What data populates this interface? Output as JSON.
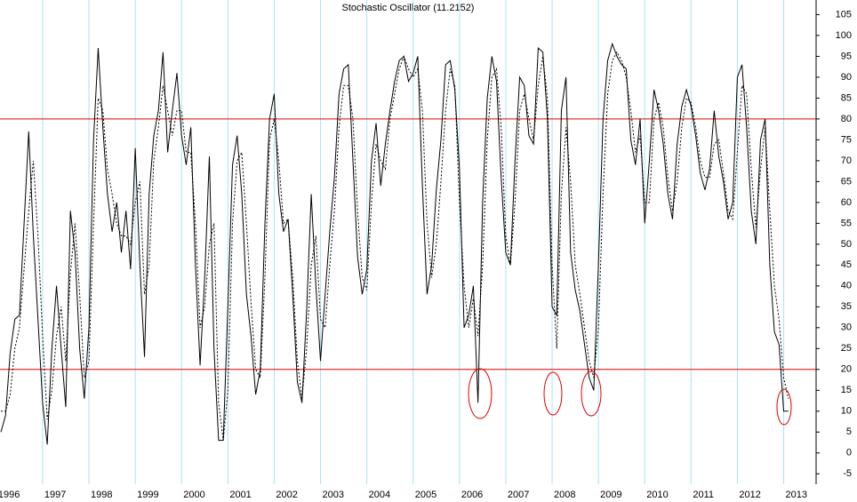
{
  "chart_data": {
    "type": "line",
    "title": "Stochastic Oscillator (11.2152)",
    "x": [
      1996.1,
      1996.2,
      1996.3,
      1996.4,
      1996.5,
      1996.6,
      1996.7,
      1996.8,
      1996.9,
      1997.0,
      1997.1,
      1997.2,
      1997.3,
      1997.4,
      1997.5,
      1997.6,
      1997.7,
      1997.8,
      1997.9,
      1998.0,
      1998.1,
      1998.2,
      1998.3,
      1998.4,
      1998.5,
      1998.6,
      1998.7,
      1998.8,
      1998.9,
      1999.0,
      1999.1,
      1999.2,
      1999.3,
      1999.4,
      1999.5,
      1999.6,
      1999.7,
      1999.8,
      1999.9,
      2000.0,
      2000.1,
      2000.2,
      2000.3,
      2000.4,
      2000.5,
      2000.6,
      2000.7,
      2000.8,
      2000.9,
      2001.0,
      2001.1,
      2001.2,
      2001.3,
      2001.4,
      2001.5,
      2001.6,
      2001.7,
      2001.8,
      2001.9,
      2002.0,
      2002.1,
      2002.2,
      2002.3,
      2002.4,
      2002.5,
      2002.6,
      2002.7,
      2002.8,
      2002.9,
      2003.0,
      2003.1,
      2003.2,
      2003.3,
      2003.4,
      2003.5,
      2003.6,
      2003.7,
      2003.8,
      2003.9,
      2004.0,
      2004.1,
      2004.2,
      2004.3,
      2004.4,
      2004.5,
      2004.6,
      2004.7,
      2004.8,
      2004.9,
      2005.0,
      2005.1,
      2005.2,
      2005.3,
      2005.4,
      2005.5,
      2005.6,
      2005.7,
      2005.8,
      2005.9,
      2006.0,
      2006.1,
      2006.2,
      2006.3,
      2006.4,
      2006.5,
      2006.6,
      2006.7,
      2006.8,
      2006.9,
      2007.0,
      2007.1,
      2007.2,
      2007.3,
      2007.4,
      2007.5,
      2007.6,
      2007.7,
      2007.8,
      2007.9,
      2008.0,
      2008.1,
      2008.2,
      2008.3,
      2008.4,
      2008.5,
      2008.6,
      2008.7,
      2008.8,
      2008.9,
      2009.0,
      2009.1,
      2009.2,
      2009.3,
      2009.4,
      2009.5,
      2009.6,
      2009.7,
      2009.8,
      2009.9,
      2010.0,
      2010.1,
      2010.2,
      2010.3,
      2010.4,
      2010.5,
      2010.6,
      2010.7,
      2010.8,
      2010.9,
      2011.0,
      2011.1,
      2011.2,
      2011.3,
      2011.4,
      2011.5,
      2011.6,
      2011.7,
      2011.8,
      2011.9,
      2012.0,
      2012.1,
      2012.2,
      2012.3,
      2012.4,
      2012.5,
      2012.6,
      2012.7,
      2012.8,
      2012.9,
      2013.0,
      2013.1
    ],
    "series": [
      {
        "color": "#000000",
        "style": "solid",
        "values": [
          5,
          9,
          24,
          32,
          33,
          55,
          77,
          52,
          32,
          12,
          2,
          25,
          40,
          25,
          11,
          58,
          48,
          25,
          13,
          30,
          75,
          97,
          78,
          62,
          53,
          60,
          48,
          58,
          44,
          73,
          45,
          23,
          62,
          76,
          82,
          96,
          72,
          82,
          91,
          76,
          69,
          78,
          45,
          21,
          42,
          71,
          25,
          3,
          3,
          35,
          69,
          76,
          62,
          38,
          28,
          14,
          20,
          55,
          80,
          86,
          62,
          53,
          56,
          38,
          17,
          12,
          34,
          62,
          40,
          22,
          38,
          53,
          66,
          86,
          92,
          93,
          70,
          47,
          38,
          44,
          70,
          79,
          64,
          74,
          82,
          89,
          94,
          95,
          89,
          91,
          95,
          64,
          38,
          45,
          63,
          75,
          93,
          94,
          87,
          68,
          30,
          33,
          40,
          12,
          60,
          85,
          95,
          89,
          66,
          48,
          45,
          70,
          90,
          88,
          76,
          74,
          97,
          96,
          80,
          35,
          33,
          82,
          90,
          48,
          39,
          34,
          26,
          18,
          15,
          45,
          80,
          94,
          98,
          95,
          93,
          92,
          75,
          69,
          80,
          55,
          70,
          87,
          82,
          74,
          62,
          56,
          74,
          83,
          87,
          83,
          76,
          67,
          63,
          68,
          82,
          71,
          65,
          56,
          60,
          90,
          93,
          78,
          58,
          50,
          75,
          80,
          45,
          29,
          26,
          10,
          10
        ]
      },
      {
        "color": "#000000",
        "style": "dotted",
        "values": [
          10,
          10,
          14,
          25,
          30,
          44,
          58,
          70,
          52,
          28,
          8,
          15,
          28,
          35,
          22,
          43,
          55,
          38,
          18,
          22,
          55,
          85,
          82,
          68,
          62,
          55,
          52,
          52,
          50,
          60,
          65,
          38,
          45,
          70,
          78,
          88,
          82,
          76,
          82,
          82,
          72,
          72,
          55,
          30,
          35,
          50,
          55,
          12,
          3,
          15,
          55,
          70,
          72,
          55,
          36,
          20,
          18,
          42,
          75,
          80,
          70,
          55,
          56,
          42,
          22,
          13,
          25,
          45,
          52,
          32,
          30,
          45,
          58,
          78,
          88,
          88,
          80,
          58,
          42,
          39,
          60,
          74,
          70,
          68,
          80,
          86,
          92,
          95,
          92,
          90,
          92,
          82,
          55,
          42,
          50,
          65,
          82,
          92,
          88,
          60,
          40,
          30,
          37,
          28,
          45,
          75,
          90,
          92,
          78,
          52,
          45,
          60,
          82,
          86,
          80,
          75,
          88,
          95,
          85,
          45,
          25,
          62,
          78,
          65,
          45,
          38,
          30,
          22,
          18,
          30,
          62,
          86,
          94,
          96,
          94,
          90,
          82,
          72,
          76,
          60,
          60,
          80,
          84,
          78,
          66,
          58,
          65,
          78,
          85,
          84,
          78,
          70,
          66,
          66,
          74,
          75,
          67,
          58,
          56,
          72,
          88,
          86,
          68,
          54,
          68,
          78,
          58,
          40,
          32,
          18,
          13
        ]
      }
    ],
    "xlim": [
      1996.08,
      2013.7
    ],
    "ylim": [
      -7.5,
      108.5
    ],
    "xticks": [
      1996,
      1997,
      1998,
      1999,
      2000,
      2001,
      2002,
      2003,
      2004,
      2005,
      2006,
      2007,
      2008,
      2009,
      2010,
      2011,
      2012,
      2013
    ],
    "yticks": [
      -5,
      0,
      5,
      10,
      15,
      20,
      25,
      30,
      35,
      40,
      45,
      50,
      55,
      60,
      65,
      70,
      75,
      80,
      85,
      90,
      95,
      100,
      105
    ],
    "reference_lines": [
      80,
      20
    ],
    "reference_color": "#e00000",
    "grid_color": "#a8e4f0"
  }
}
